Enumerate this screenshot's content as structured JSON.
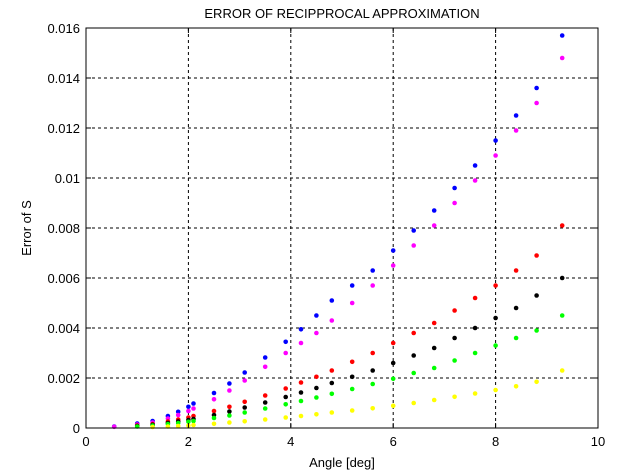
{
  "chart_data": {
    "type": "scatter",
    "title": "ERROR OF RECIPPROCAL APPROXIMATION",
    "xlabel": "Angle [deg]",
    "ylabel": "Error of S",
    "xlim": [
      0,
      10
    ],
    "ylim": [
      0,
      0.016
    ],
    "xticks": [
      0,
      2,
      4,
      6,
      8,
      10
    ],
    "xtick_labels": [
      "0",
      "2",
      "4",
      "6",
      "8",
      "10"
    ],
    "yticks": [
      0,
      0.002,
      0.004,
      0.006,
      0.008,
      0.01,
      0.012,
      0.014,
      0.016
    ],
    "ytick_labels": [
      "0",
      "0.002",
      "0.004",
      "0.006",
      "0.008",
      "0.01",
      "0.012",
      "0.014",
      "0.016"
    ],
    "grid": true,
    "series": [
      {
        "name": "blue",
        "color": "#0000ff",
        "x": [
          0.55,
          1.0,
          1.3,
          1.6,
          1.8,
          2.0,
          2.1,
          2.5,
          2.8,
          3.1,
          3.5,
          3.9,
          4.2,
          4.5,
          4.8,
          5.2,
          5.6,
          6.0,
          6.4,
          6.8,
          7.2,
          7.6,
          8.0,
          8.4,
          8.8,
          9.3
        ],
        "y": [
          6e-05,
          0.00018,
          0.00028,
          0.00048,
          0.00065,
          0.00085,
          0.00098,
          0.0014,
          0.00178,
          0.00222,
          0.00282,
          0.00345,
          0.00395,
          0.0045,
          0.0051,
          0.0057,
          0.0063,
          0.0071,
          0.0079,
          0.0087,
          0.0096,
          0.0105,
          0.0115,
          0.0125,
          0.0136,
          0.0157
        ]
      },
      {
        "name": "magenta",
        "color": "#ff00ff",
        "x": [
          0.55,
          1.0,
          1.3,
          1.6,
          1.8,
          2.0,
          2.1,
          2.5,
          2.8,
          3.1,
          3.5,
          3.9,
          4.2,
          4.5,
          4.8,
          5.2,
          5.6,
          6.0,
          6.4,
          6.8,
          7.2,
          7.6,
          8.0,
          8.4,
          8.8,
          9.3
        ],
        "y": [
          5e-05,
          0.00014,
          0.00022,
          0.00038,
          0.00052,
          0.00068,
          0.00078,
          0.00115,
          0.0015,
          0.0019,
          0.00245,
          0.003,
          0.0034,
          0.0038,
          0.0043,
          0.005,
          0.0057,
          0.0065,
          0.0073,
          0.0081,
          0.009,
          0.0099,
          0.0109,
          0.0119,
          0.013,
          0.0148
        ]
      },
      {
        "name": "red",
        "color": "#ff0000",
        "x": [
          1.0,
          1.3,
          1.6,
          1.8,
          2.0,
          2.1,
          2.5,
          2.8,
          3.1,
          3.5,
          3.9,
          4.2,
          4.5,
          4.8,
          5.2,
          5.6,
          6.0,
          6.4,
          6.8,
          7.2,
          7.6,
          8.0,
          8.4,
          8.8,
          9.3
        ],
        "y": [
          0.0001,
          0.00016,
          0.00026,
          0.00034,
          0.00042,
          0.00048,
          0.00068,
          0.00085,
          0.00105,
          0.0013,
          0.00158,
          0.00182,
          0.00205,
          0.0023,
          0.00265,
          0.003,
          0.0034,
          0.0038,
          0.0042,
          0.0047,
          0.0052,
          0.0057,
          0.0063,
          0.0069,
          0.0081
        ]
      },
      {
        "name": "black",
        "color": "#000000",
        "x": [
          1.0,
          1.3,
          1.6,
          1.8,
          2.0,
          2.1,
          2.5,
          2.8,
          3.1,
          3.5,
          3.9,
          4.2,
          4.5,
          4.8,
          5.2,
          5.6,
          6.0,
          6.4,
          6.8,
          7.2,
          7.6,
          8.0,
          8.4,
          8.8,
          9.3
        ],
        "y": [
          8e-05,
          0.00013,
          0.0002,
          0.00026,
          0.00032,
          0.00036,
          0.00052,
          0.00066,
          0.00082,
          0.00102,
          0.00124,
          0.00142,
          0.0016,
          0.0018,
          0.00205,
          0.0023,
          0.0026,
          0.0029,
          0.0032,
          0.0036,
          0.004,
          0.0044,
          0.0048,
          0.0053,
          0.006
        ]
      },
      {
        "name": "green",
        "color": "#00ff00",
        "x": [
          1.0,
          1.3,
          1.6,
          1.8,
          2.0,
          2.1,
          2.5,
          2.8,
          3.1,
          3.5,
          3.9,
          4.2,
          4.5,
          4.8,
          5.2,
          5.6,
          6.0,
          6.4,
          6.8,
          7.2,
          7.6,
          8.0,
          8.4,
          8.8,
          9.3
        ],
        "y": [
          6e-05,
          0.0001,
          0.00016,
          0.0002,
          0.00025,
          0.00028,
          0.0004,
          0.0005,
          0.00062,
          0.00078,
          0.00095,
          0.00108,
          0.00122,
          0.00137,
          0.00156,
          0.00176,
          0.00197,
          0.0022,
          0.0024,
          0.0027,
          0.003,
          0.0033,
          0.0036,
          0.0039,
          0.0045
        ]
      },
      {
        "name": "yellow",
        "color": "#ffff00",
        "x": [
          1.3,
          1.6,
          1.8,
          2.0,
          2.1,
          2.5,
          2.8,
          3.1,
          3.5,
          3.9,
          4.2,
          4.5,
          4.8,
          5.2,
          5.6,
          6.0,
          6.4,
          6.8,
          7.2,
          7.6,
          8.0,
          8.4,
          8.8,
          9.3
        ],
        "y": [
          4e-05,
          6e-05,
          8e-05,
          0.0001,
          0.00012,
          0.00017,
          0.00022,
          0.00027,
          0.00034,
          0.00042,
          0.00048,
          0.00055,
          0.00062,
          0.0007,
          0.00079,
          0.00089,
          0.001,
          0.00112,
          0.00125,
          0.00138,
          0.00152,
          0.00167,
          0.00185,
          0.0023
        ]
      }
    ]
  }
}
